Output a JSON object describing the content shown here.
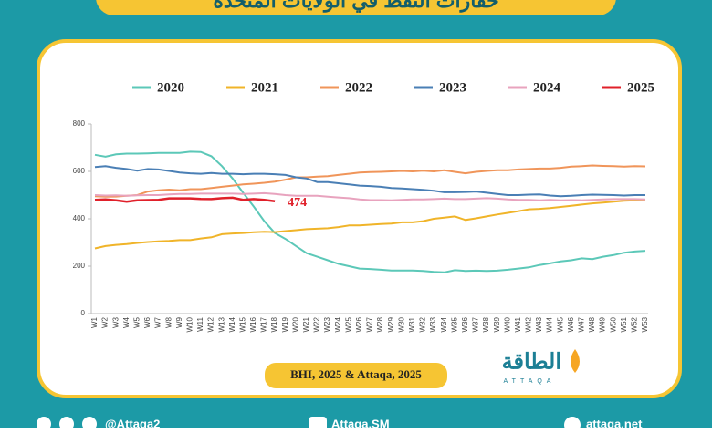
{
  "banner_title": "حفارات النفط في الولايات المتحدة",
  "source": "BHI, 2025 & Attaqa, 2025",
  "logo": {
    "name": "الطاقة",
    "latin": "ATTAQA"
  },
  "footer": [
    "@Attaqa2",
    "Attaqa.SM",
    "attaqa.net"
  ],
  "chart_data": {
    "type": "line",
    "categories": [
      "W1",
      "W2",
      "W3",
      "W4",
      "W5",
      "W6",
      "W7",
      "W8",
      "W9",
      "W10",
      "W11",
      "W12",
      "W13",
      "W14",
      "W15",
      "W16",
      "W17",
      "W18",
      "W19",
      "W20",
      "W21",
      "W22",
      "W23",
      "W24",
      "W25",
      "W26",
      "W27",
      "W28",
      "W29",
      "W30",
      "W31",
      "W32",
      "W33",
      "W34",
      "W35",
      "W36",
      "W37",
      "W38",
      "W39",
      "W40",
      "W41",
      "W42",
      "W43",
      "W44",
      "W45",
      "W46",
      "W47",
      "W48",
      "W49",
      "W50",
      "W51",
      "W52",
      "W53"
    ],
    "ylim": [
      0,
      800
    ],
    "yticks": [
      0,
      200,
      400,
      600,
      800
    ],
    "series": [
      {
        "name": "2020",
        "color": "#5cc8b8",
        "values": [
          670,
          662,
          672,
          675,
          675,
          676,
          678,
          678,
          678,
          683,
          682,
          664,
          622,
          570,
          510,
          452,
          390,
          340,
          315,
          285,
          255,
          240,
          225,
          210,
          200,
          190,
          188,
          185,
          182,
          182,
          182,
          180,
          176,
          174,
          183,
          180,
          181,
          180,
          181,
          185,
          190,
          195,
          205,
          212,
          220,
          225,
          233,
          230,
          240,
          247,
          257,
          262,
          265
        ]
      },
      {
        "name": "2021",
        "color": "#f0b429",
        "values": [
          275,
          285,
          290,
          293,
          298,
          302,
          305,
          307,
          310,
          310,
          317,
          322,
          335,
          338,
          340,
          343,
          345,
          344,
          348,
          352,
          356,
          358,
          360,
          365,
          372,
          372,
          375,
          378,
          380,
          385,
          385,
          390,
          400,
          405,
          410,
          395,
          402,
          410,
          418,
          425,
          432,
          440,
          442,
          445,
          450,
          455,
          460,
          465,
          468,
          472,
          476,
          478,
          480
        ]
      },
      {
        "name": "2022",
        "color": "#f0955a",
        "values": [
          495,
          493,
          494,
          497,
          500,
          515,
          520,
          523,
          520,
          525,
          525,
          530,
          535,
          540,
          545,
          548,
          552,
          557,
          565,
          575,
          575,
          578,
          580,
          585,
          590,
          595,
          597,
          598,
          600,
          602,
          600,
          603,
          600,
          605,
          598,
          592,
          598,
          602,
          605,
          605,
          608,
          610,
          612,
          612,
          615,
          620,
          622,
          625,
          623,
          622,
          620,
          622,
          621
        ]
      },
      {
        "name": "2023",
        "color": "#4a7fb5",
        "values": [
          618,
          622,
          615,
          610,
          603,
          610,
          608,
          602,
          595,
          592,
          590,
          593,
          590,
          590,
          588,
          590,
          590,
          588,
          585,
          575,
          570,
          555,
          555,
          550,
          545,
          540,
          538,
          535,
          530,
          528,
          525,
          522,
          518,
          512,
          512,
          513,
          515,
          510,
          505,
          500,
          500,
          502,
          503,
          498,
          495,
          497,
          500,
          502,
          501,
          500,
          498,
          500,
          500
        ]
      },
      {
        "name": "2024",
        "color": "#e8a3be",
        "values": [
          500,
          498,
          499,
          497,
          499,
          500,
          500,
          503,
          505,
          505,
          506,
          506,
          506,
          506,
          505,
          506,
          508,
          505,
          500,
          497,
          497,
          497,
          493,
          490,
          487,
          482,
          479,
          479,
          478,
          480,
          482,
          482,
          483,
          485,
          483,
          483,
          485,
          487,
          485,
          482,
          480,
          480,
          478,
          480,
          478,
          479,
          478,
          480,
          482,
          483,
          483,
          483,
          482
        ]
      },
      {
        "name": "2025",
        "color": "#e0202a",
        "values": [
          480,
          482,
          478,
          472,
          478,
          479,
          480,
          486,
          486,
          486,
          484,
          483,
          487,
          489,
          480,
          483,
          480,
          474,
          null,
          null,
          null,
          null,
          null,
          null,
          null,
          null,
          null,
          null,
          null,
          null,
          null,
          null,
          null,
          null,
          null,
          null,
          null,
          null,
          null,
          null,
          null,
          null,
          null,
          null,
          null,
          null,
          null,
          null,
          null,
          null,
          null,
          null,
          null
        ]
      }
    ]
  }
}
